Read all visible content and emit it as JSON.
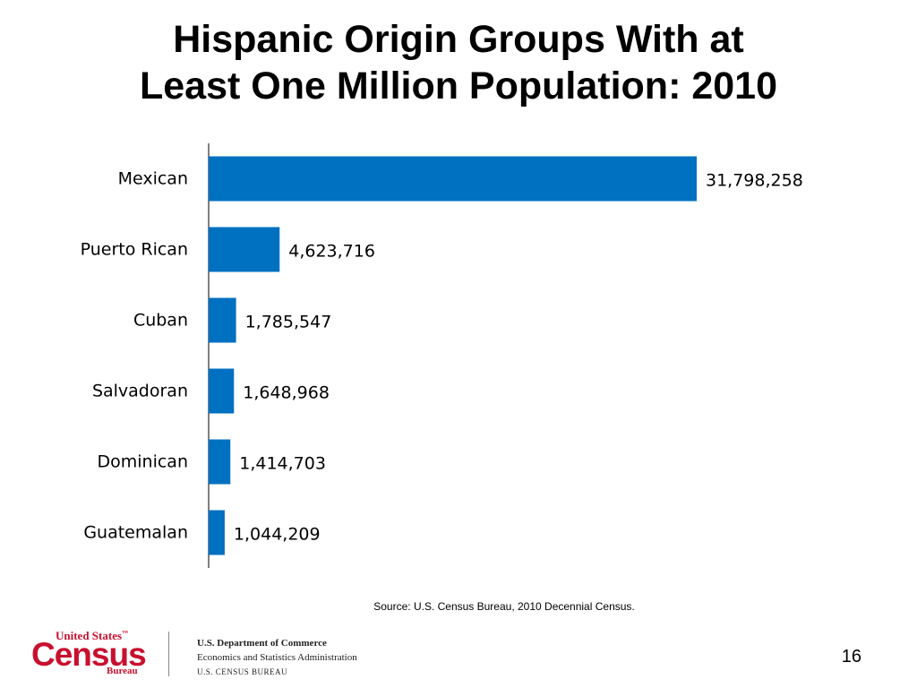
{
  "slide": {
    "title_line1": "Hispanic Origin Groups With at",
    "title_line2": "Least One Million Population: 2010",
    "source": "Source: U.S. Census Bureau, 2010 Decennial Census.",
    "page_number": "16"
  },
  "footer": {
    "logo_top": "United States",
    "logo_tm": "™",
    "logo_main": "Census",
    "logo_bureau": "Bureau",
    "dept_line1": "U.S. Department of Commerce",
    "dept_line2": "Economics and Statistics Administration",
    "dept_line3": "U.S. CENSUS BUREAU"
  },
  "chart_data": {
    "type": "bar",
    "orientation": "horizontal",
    "categories": [
      "Mexican",
      "Puerto Rican",
      "Cuban",
      "Salvadoran",
      "Dominican",
      "Guatemalan"
    ],
    "values": [
      31798258,
      4623716,
      1785547,
      1648968,
      1414703,
      1044209
    ],
    "data_labels": [
      "31,798,258",
      "4,623,716",
      "1,785,547",
      "1,648,968",
      "1,414,703",
      "1,044,209"
    ],
    "bar_color": "#0070c0",
    "grid": false,
    "legend": "none"
  }
}
